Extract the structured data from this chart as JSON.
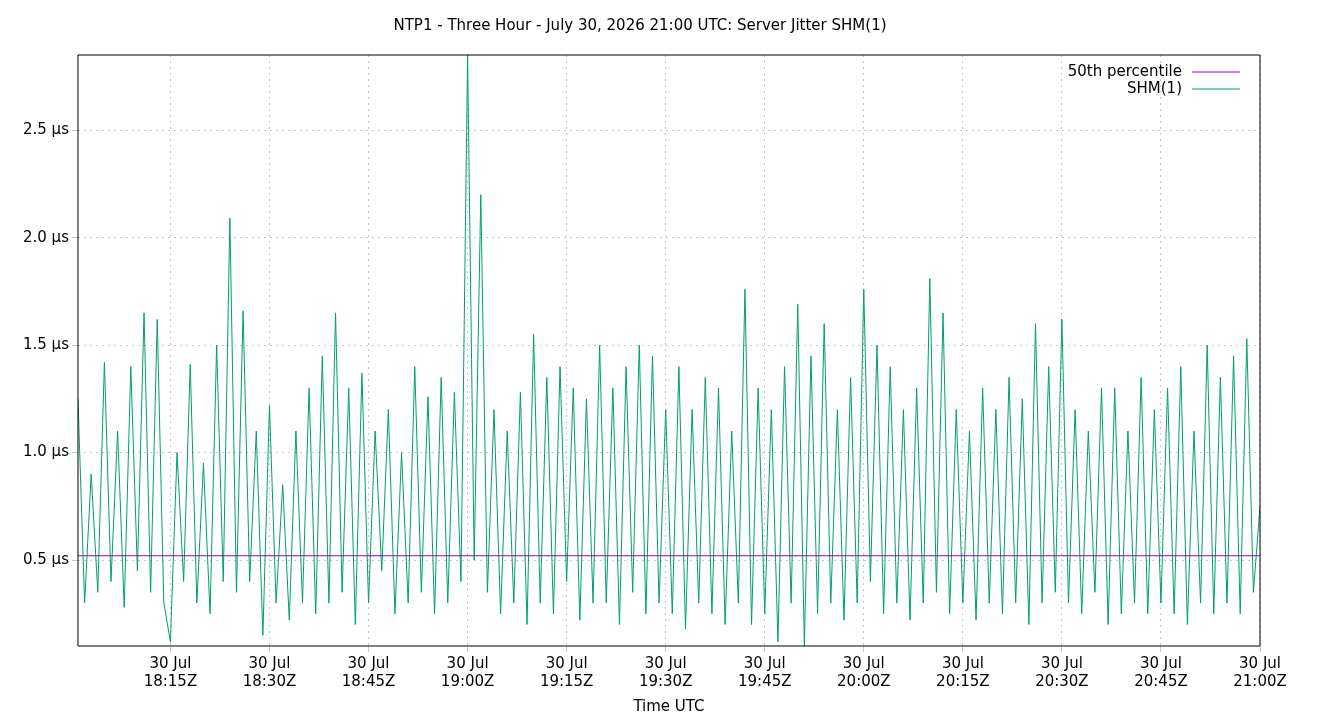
{
  "chart_data": {
    "type": "line",
    "title": "NTP1 - Three Hour - July 30, 2026 21:00 UTC: Server Jitter SHM(1)",
    "xlabel": "Time UTC",
    "xlim": [
      "2026-07-30T18:01",
      "2026-07-30T21:00"
    ],
    "xticks": [
      {
        "value": "2026-07-30T18:15",
        "label": "30 Jul\n18:15Z"
      },
      {
        "value": "2026-07-30T18:30",
        "label": "30 Jul\n18:30Z"
      },
      {
        "value": "2026-07-30T18:45",
        "label": "30 Jul\n18:45Z"
      },
      {
        "value": "2026-07-30T19:00",
        "label": "30 Jul\n19:00Z"
      },
      {
        "value": "2026-07-30T19:15",
        "label": "30 Jul\n19:15Z"
      },
      {
        "value": "2026-07-30T19:30",
        "label": "30 Jul\n19:30Z"
      },
      {
        "value": "2026-07-30T19:45",
        "label": "30 Jul\n19:45Z"
      },
      {
        "value": "2026-07-30T20:00",
        "label": "30 Jul\n20:00Z"
      },
      {
        "value": "2026-07-30T20:15",
        "label": "30 Jul\n20:15Z"
      },
      {
        "value": "2026-07-30T20:30",
        "label": "30 Jul\n20:30Z"
      },
      {
        "value": "2026-07-30T20:45",
        "label": "30 Jul\n20:45Z"
      },
      {
        "value": "2026-07-30T21:00",
        "label": "30 Jul\n21:00Z"
      }
    ],
    "ylim": [
      0.1,
      2.85
    ],
    "yticks": [
      {
        "value": 0.5,
        "label": "0.5 µs"
      },
      {
        "value": 1.0,
        "label": "1.0 µs"
      },
      {
        "value": 1.5,
        "label": "1.5 µs"
      },
      {
        "value": 2.0,
        "label": "2.0 µs"
      },
      {
        "value": 2.5,
        "label": "2.5 µs"
      }
    ],
    "grid": true,
    "legend": "top right",
    "series": [
      {
        "name": "50th percentile",
        "color": "#9400d3",
        "x": [
          "2026-07-30T18:01",
          "2026-07-30T21:00"
        ],
        "values": [
          0.52,
          0.52
        ]
      },
      {
        "name": "SHM(1)",
        "color": "#009e73",
        "x": [
          "2026-07-30T18:01",
          "2026-07-30T18:02",
          "2026-07-30T18:03",
          "2026-07-30T18:04",
          "2026-07-30T18:05",
          "2026-07-30T18:06",
          "2026-07-30T18:07",
          "2026-07-30T18:08",
          "2026-07-30T18:09",
          "2026-07-30T18:10",
          "2026-07-30T18:11",
          "2026-07-30T18:12",
          "2026-07-30T18:13",
          "2026-07-30T18:14",
          "2026-07-30T18:15",
          "2026-07-30T18:16",
          "2026-07-30T18:17",
          "2026-07-30T18:18",
          "2026-07-30T18:19",
          "2026-07-30T18:20",
          "2026-07-30T18:21",
          "2026-07-30T18:22",
          "2026-07-30T18:23",
          "2026-07-30T18:24",
          "2026-07-30T18:25",
          "2026-07-30T18:26",
          "2026-07-30T18:27",
          "2026-07-30T18:28",
          "2026-07-30T18:29",
          "2026-07-30T18:30",
          "2026-07-30T18:31",
          "2026-07-30T18:32",
          "2026-07-30T18:33",
          "2026-07-30T18:34",
          "2026-07-30T18:35",
          "2026-07-30T18:36",
          "2026-07-30T18:37",
          "2026-07-30T18:38",
          "2026-07-30T18:39",
          "2026-07-30T18:40",
          "2026-07-30T18:41",
          "2026-07-30T18:42",
          "2026-07-30T18:43",
          "2026-07-30T18:44",
          "2026-07-30T18:45",
          "2026-07-30T18:46",
          "2026-07-30T18:47",
          "2026-07-30T18:48",
          "2026-07-30T18:49",
          "2026-07-30T18:50",
          "2026-07-30T18:51",
          "2026-07-30T18:52",
          "2026-07-30T18:53",
          "2026-07-30T18:54",
          "2026-07-30T18:55",
          "2026-07-30T18:56",
          "2026-07-30T18:57",
          "2026-07-30T18:58",
          "2026-07-30T18:59",
          "2026-07-30T19:00",
          "2026-07-30T19:01",
          "2026-07-30T19:02",
          "2026-07-30T19:03",
          "2026-07-30T19:04",
          "2026-07-30T19:05",
          "2026-07-30T19:06",
          "2026-07-30T19:07",
          "2026-07-30T19:08",
          "2026-07-30T19:09",
          "2026-07-30T19:10",
          "2026-07-30T19:11",
          "2026-07-30T19:12",
          "2026-07-30T19:13",
          "2026-07-30T19:14",
          "2026-07-30T19:15",
          "2026-07-30T19:16",
          "2026-07-30T19:17",
          "2026-07-30T19:18",
          "2026-07-30T19:19",
          "2026-07-30T19:20",
          "2026-07-30T19:21",
          "2026-07-30T19:22",
          "2026-07-30T19:23",
          "2026-07-30T19:24",
          "2026-07-30T19:25",
          "2026-07-30T19:26",
          "2026-07-30T19:27",
          "2026-07-30T19:28",
          "2026-07-30T19:29",
          "2026-07-30T19:30",
          "2026-07-30T19:31",
          "2026-07-30T19:32",
          "2026-07-30T19:33",
          "2026-07-30T19:34",
          "2026-07-30T19:35",
          "2026-07-30T19:36",
          "2026-07-30T19:37",
          "2026-07-30T19:38",
          "2026-07-30T19:39",
          "2026-07-30T19:40",
          "2026-07-30T19:41",
          "2026-07-30T19:42",
          "2026-07-30T19:43",
          "2026-07-30T19:44",
          "2026-07-30T19:45",
          "2026-07-30T19:46",
          "2026-07-30T19:47",
          "2026-07-30T19:48",
          "2026-07-30T19:49",
          "2026-07-30T19:50",
          "2026-07-30T19:51",
          "2026-07-30T19:52",
          "2026-07-30T19:53",
          "2026-07-30T19:54",
          "2026-07-30T19:55",
          "2026-07-30T19:56",
          "2026-07-30T19:57",
          "2026-07-30T19:58",
          "2026-07-30T19:59",
          "2026-07-30T20:00",
          "2026-07-30T20:01",
          "2026-07-30T20:02",
          "2026-07-30T20:03",
          "2026-07-30T20:04",
          "2026-07-30T20:05",
          "2026-07-30T20:06",
          "2026-07-30T20:07",
          "2026-07-30T20:08",
          "2026-07-30T20:09",
          "2026-07-30T20:10",
          "2026-07-30T20:11",
          "2026-07-30T20:12",
          "2026-07-30T20:13",
          "2026-07-30T20:14",
          "2026-07-30T20:15",
          "2026-07-30T20:16",
          "2026-07-30T20:17",
          "2026-07-30T20:18",
          "2026-07-30T20:19",
          "2026-07-30T20:20",
          "2026-07-30T20:21",
          "2026-07-30T20:22",
          "2026-07-30T20:23",
          "2026-07-30T20:24",
          "2026-07-30T20:25",
          "2026-07-30T20:26",
          "2026-07-30T20:27",
          "2026-07-30T20:28",
          "2026-07-30T20:29",
          "2026-07-30T20:30",
          "2026-07-30T20:31",
          "2026-07-30T20:32",
          "2026-07-30T20:33",
          "2026-07-30T20:34",
          "2026-07-30T20:35",
          "2026-07-30T20:36",
          "2026-07-30T20:37",
          "2026-07-30T20:38",
          "2026-07-30T20:39",
          "2026-07-30T20:40",
          "2026-07-30T20:41",
          "2026-07-30T20:42",
          "2026-07-30T20:43",
          "2026-07-30T20:44",
          "2026-07-30T20:45",
          "2026-07-30T20:46",
          "2026-07-30T20:47",
          "2026-07-30T20:48",
          "2026-07-30T20:49",
          "2026-07-30T20:50",
          "2026-07-30T20:51",
          "2026-07-30T20:52",
          "2026-07-30T20:53",
          "2026-07-30T20:54",
          "2026-07-30T20:55",
          "2026-07-30T20:56",
          "2026-07-30T20:57",
          "2026-07-30T20:58",
          "2026-07-30T20:59",
          "2026-07-30T21:00"
        ],
        "values": [
          1.25,
          0.3,
          0.9,
          0.35,
          1.42,
          0.4,
          1.1,
          0.28,
          1.4,
          0.45,
          1.65,
          0.35,
          1.62,
          0.3,
          0.12,
          1.0,
          0.4,
          1.41,
          0.3,
          0.95,
          0.25,
          1.5,
          0.4,
          2.09,
          0.35,
          1.66,
          0.4,
          1.1,
          0.15,
          1.22,
          0.3,
          0.85,
          0.22,
          1.1,
          0.3,
          1.3,
          0.25,
          1.45,
          0.3,
          1.65,
          0.35,
          1.3,
          0.2,
          1.37,
          0.3,
          1.1,
          0.45,
          1.2,
          0.25,
          1.0,
          0.3,
          1.4,
          0.35,
          1.26,
          0.25,
          1.35,
          0.3,
          1.28,
          0.4,
          2.85,
          0.5,
          2.2,
          0.35,
          1.2,
          0.25,
          1.1,
          0.3,
          1.28,
          0.2,
          1.55,
          0.3,
          1.35,
          0.25,
          1.4,
          0.4,
          1.3,
          0.22,
          1.25,
          0.3,
          1.5,
          0.3,
          1.3,
          0.2,
          1.4,
          0.35,
          1.5,
          0.25,
          1.45,
          0.3,
          1.2,
          0.25,
          1.4,
          0.18,
          1.2,
          0.3,
          1.35,
          0.25,
          1.3,
          0.2,
          1.1,
          0.3,
          1.76,
          0.2,
          1.3,
          0.25,
          1.2,
          0.12,
          1.4,
          0.3,
          1.69,
          0.1,
          1.45,
          0.25,
          1.6,
          0.3,
          1.2,
          0.22,
          1.35,
          0.3,
          1.76,
          0.4,
          1.5,
          0.25,
          1.4,
          0.3,
          1.2,
          0.22,
          1.3,
          0.3,
          1.81,
          0.35,
          1.65,
          0.25,
          1.2,
          0.3,
          1.1,
          0.22,
          1.3,
          0.3,
          1.2,
          0.25,
          1.35,
          0.3,
          1.25,
          0.2,
          1.6,
          0.3,
          1.4,
          0.35,
          1.62,
          0.3,
          1.2,
          0.25,
          1.1,
          0.35,
          1.3,
          0.2,
          1.3,
          0.25,
          1.1,
          0.3,
          1.35,
          0.25,
          1.2,
          0.3,
          1.3,
          0.25,
          1.4,
          0.2,
          1.1,
          0.3,
          1.5,
          0.25,
          1.35,
          0.3,
          1.45,
          0.25,
          1.53,
          0.35,
          0.75
        ]
      }
    ]
  }
}
